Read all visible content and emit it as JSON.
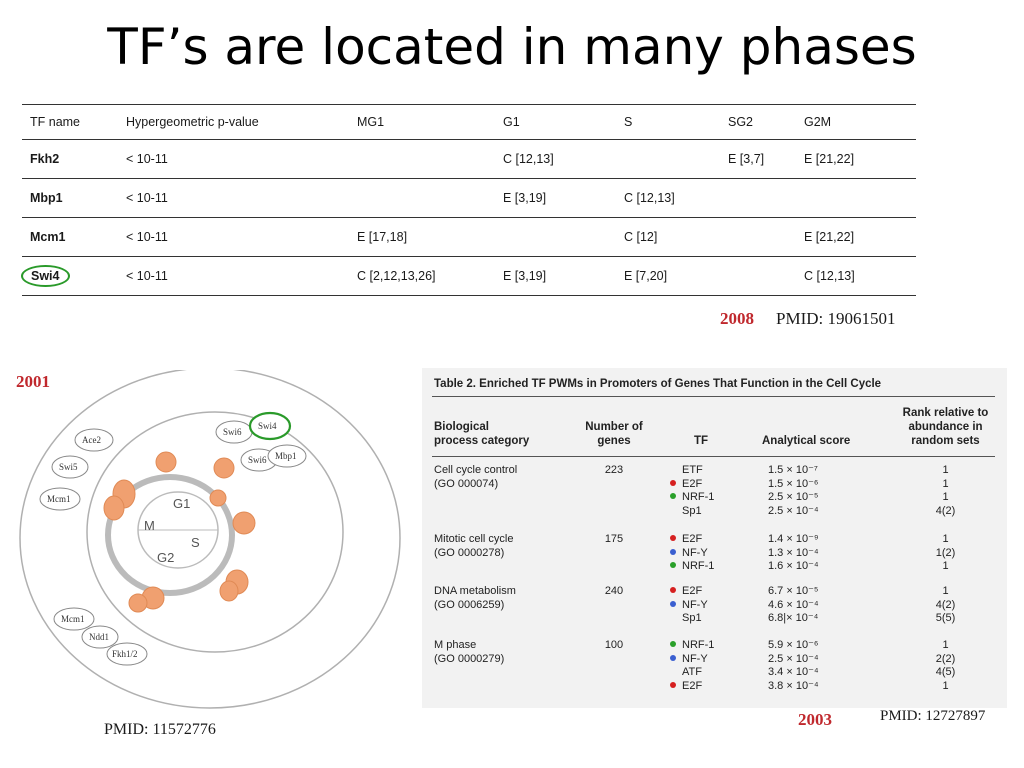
{
  "title": "TF’s are located in many phases",
  "table_2008": {
    "headers": [
      "TF name",
      "Hypergeometric p-value",
      "MG1",
      "G1",
      "S",
      "SG2",
      "G2M"
    ],
    "rows": [
      {
        "tf": "Fkh2",
        "p": "< 10-11",
        "mg1": "",
        "g1": "C [12,13]",
        "s": "",
        "sg2": "E [3,7]",
        "g2m": "E [21,22]"
      },
      {
        "tf": "Mbp1",
        "p": "< 10-11",
        "mg1": "",
        "g1": "E [3,19]",
        "s": "C [12,13]",
        "sg2": "",
        "g2m": ""
      },
      {
        "tf": "Mcm1",
        "p": "< 10-11",
        "mg1": "E [17,18]",
        "g1": "",
        "s": "C [12]",
        "sg2": "",
        "g2m": "E [21,22]"
      },
      {
        "tf": "Swi4",
        "p": "< 10-11",
        "mg1": "C [2,12,13,26]",
        "g1": "E [3,19]",
        "s": "E [7,20]",
        "sg2": "",
        "g2m": "C [12,13]"
      }
    ],
    "year": "2008",
    "pmid": "PMID: 19061501"
  },
  "diagram_2001": {
    "year": "2001",
    "pmid": "PMID: 11572776",
    "phases": {
      "g1": "G1",
      "s": "S",
      "g2": "G2",
      "m": "M"
    },
    "nodes": {
      "ace2": "Ace2",
      "swi5": "Swi5",
      "mcm1_top": "Mcm1",
      "swi6_a": "Swi6",
      "swi4": "Swi4",
      "swi6_b": "Swi6",
      "mbp1": "Mbp1",
      "mcm1_bottom": "Mcm1",
      "ndd1": "Ndd1",
      "fkh12": "Fkh1/2"
    },
    "colors": {
      "blob": "#f0a070",
      "blob_edge": "#e08a55",
      "circle_line": "#999999",
      "highlight": "#2a9a2a"
    }
  },
  "table_2003": {
    "caption": "Table 2.   Enriched TF PWMs in Promoters of Genes That Function in the Cell Cycle",
    "headers": {
      "category": "Biological\nprocess category",
      "number": "Number of\ngenes",
      "tf": "TF",
      "score": "Analytical score",
      "rank": "Rank relative to\nabundance in\nrandom sets"
    },
    "groups": [
      {
        "category": "Cell cycle control",
        "go": "(GO 000074)",
        "number": "223",
        "rows": [
          {
            "dot": "",
            "tf": "ETF",
            "score": "1.5 × 10⁻⁷",
            "rank": "1"
          },
          {
            "dot": "red",
            "tf": "E2F",
            "score": "1.5 × 10⁻⁶",
            "rank": "1"
          },
          {
            "dot": "green",
            "tf": "NRF-1",
            "score": "2.5 × 10⁻⁵",
            "rank": "1"
          },
          {
            "dot": "",
            "tf": "Sp1",
            "score": "2.5 × 10⁻⁴",
            "rank": "4(2)"
          }
        ]
      },
      {
        "category": "Mitotic cell cycle",
        "go": "(GO 0000278)",
        "number": "175",
        "rows": [
          {
            "dot": "red",
            "tf": "E2F",
            "score": "1.4 × 10⁻⁹",
            "rank": "1"
          },
          {
            "dot": "blue",
            "tf": "NF-Y",
            "score": "1.3 × 10⁻⁴",
            "rank": "1(2)"
          },
          {
            "dot": "green",
            "tf": "NRF-1",
            "score": "1.6 × 10⁻⁴",
            "rank": "1"
          }
        ]
      },
      {
        "category": "DNA metabolism",
        "go": "(GO 0006259)",
        "number": "240",
        "rows": [
          {
            "dot": "red",
            "tf": "E2F",
            "score": "6.7 × 10⁻⁵",
            "rank": "1"
          },
          {
            "dot": "blue",
            "tf": "NF-Y",
            "score": "4.6 × 10⁻⁴",
            "rank": "4(2)"
          },
          {
            "dot": "",
            "tf": "Sp1",
            "score": "6.8|× 10⁻⁴",
            "rank": "5(5)"
          }
        ]
      },
      {
        "category": "M phase",
        "go": "(GO 0000279)",
        "number": "100",
        "rows": [
          {
            "dot": "green",
            "tf": "NRF-1",
            "score": "5.9 × 10⁻⁶",
            "rank": "1"
          },
          {
            "dot": "blue",
            "tf": "NF-Y",
            "score": "2.5 × 10⁻⁴",
            "rank": "2(2)"
          },
          {
            "dot": "",
            "tf": "ATF",
            "score": "3.4 × 10⁻⁴",
            "rank": "4(5)"
          },
          {
            "dot": "red",
            "tf": "E2F",
            "score": "3.8 × 10⁻⁴",
            "rank": "1"
          }
        ]
      }
    ],
    "dot_colors": {
      "red": "#d62020",
      "green": "#2aa02a",
      "blue": "#3a5fd0"
    },
    "year": "2003",
    "pmid": "PMID: 12727897"
  }
}
